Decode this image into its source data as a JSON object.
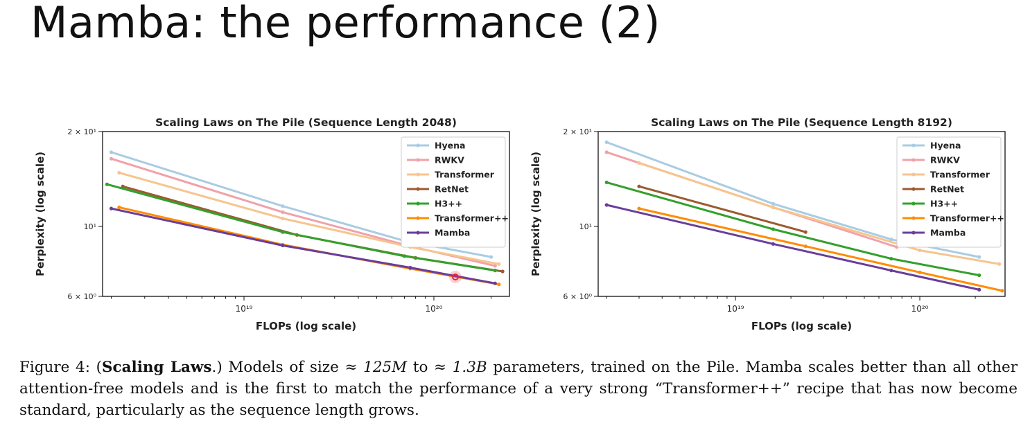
{
  "slide": {
    "title": "Mamba: the performance (2)"
  },
  "caption": {
    "figure_label": "Figure 4: (",
    "bold": "Scaling Laws",
    "text1": ".) Models of size ≈ ",
    "size1": "125M",
    "text2": " to ≈ ",
    "size2": "1.3B",
    "text3": " parameters, trained on the Pile. Mamba scales better than all other attention-free models and is the first to match the performance of a very strong “Transformer++” recipe that has now become standard, particularly as the sequence length grows."
  },
  "chart_data": [
    {
      "type": "line",
      "title": "Scaling Laws on The Pile (Sequence Length 2048)",
      "xlabel": "FLOPs (log scale)",
      "ylabel": "Perplexity (log scale)",
      "xscale": "log",
      "yscale": "log",
      "xlim": [
        1.8e+18,
        2.5e+20
      ],
      "ylim": [
        6,
        20
      ],
      "xticks": [
        {
          "value": 1e+19,
          "label": "10¹⁹"
        },
        {
          "value": 1e+20,
          "label": "10²⁰"
        }
      ],
      "yticks": [
        {
          "value": 20,
          "label": "2 × 10¹"
        },
        {
          "value": 10,
          "label": "10¹"
        },
        {
          "value": 6,
          "label": "6 × 10⁰"
        }
      ],
      "legend": "top-right",
      "grid": false,
      "series": [
        {
          "name": "Hyena",
          "color": "#a9cce3",
          "x": [
            2e+18,
            1.6e+19,
            7e+19,
            2e+20
          ],
          "y": [
            17.2,
            11.6,
            9.0,
            8.0
          ]
        },
        {
          "name": "RWKV",
          "color": "#f1a1a8",
          "x": [
            2e+18,
            1.6e+19,
            7.5e+19,
            2.1e+20
          ],
          "y": [
            16.4,
            11.1,
            8.65,
            7.5
          ]
        },
        {
          "name": "Transformer",
          "color": "#f6c58f",
          "x": [
            2.2e+18,
            1.6e+19,
            7.5e+19,
            2.2e+20
          ],
          "y": [
            14.8,
            10.6,
            8.6,
            7.6
          ]
        },
        {
          "name": "RetNet",
          "color": "#9c5a30",
          "x": [
            2.3e+18,
            1.9e+19,
            8e+19,
            2.3e+20
          ],
          "y": [
            13.4,
            9.4,
            7.95,
            7.2
          ]
        },
        {
          "name": "H3++",
          "color": "#33a02c",
          "x": [
            1.9e+18,
            1.6e+19,
            7e+19,
            2.1e+20
          ],
          "y": [
            13.6,
            9.6,
            8.05,
            7.25
          ]
        },
        {
          "name": "Transformer++",
          "color": "#ff8c00",
          "x": [
            2.2e+18,
            1.6e+19,
            7.5e+19,
            2.2e+20
          ],
          "y": [
            11.5,
            8.75,
            7.35,
            6.55
          ]
        },
        {
          "name": "Mamba",
          "color": "#6a3d9a",
          "x": [
            2e+18,
            1.6e+19,
            7.5e+19,
            2.1e+20
          ],
          "y": [
            11.4,
            8.7,
            7.4,
            6.6
          ]
        }
      ]
    },
    {
      "type": "line",
      "title": "Scaling Laws on The Pile (Sequence Length 8192)",
      "xlabel": "FLOPs (log scale)",
      "ylabel": "Perplexity (log scale)",
      "xscale": "log",
      "yscale": "log",
      "xlim": [
        1.8e+18,
        2.9e+20
      ],
      "ylim": [
        6,
        20
      ],
      "xticks": [
        {
          "value": 1e+19,
          "label": "10¹⁹"
        },
        {
          "value": 1e+20,
          "label": "10²⁰"
        }
      ],
      "yticks": [
        {
          "value": 20,
          "label": "2 × 10¹"
        },
        {
          "value": 10,
          "label": "10¹"
        },
        {
          "value": 6,
          "label": "6 × 10⁰"
        }
      ],
      "legend": "top-right",
      "grid": false,
      "series": [
        {
          "name": "Hyena",
          "color": "#a9cce3",
          "x": [
            2e+18,
            1.6e+19,
            7e+19,
            2.1e+20
          ],
          "y": [
            18.5,
            11.8,
            9.1,
            8.0
          ]
        },
        {
          "name": "RWKV",
          "color": "#f1a1a8",
          "x": [
            2e+18,
            1.6e+19,
            7.5e+19
          ],
          "y": [
            17.2,
            11.5,
            8.6
          ]
        },
        {
          "name": "Transformer",
          "color": "#f6c58f",
          "x": [
            3e+18,
            1.6e+19,
            1e+20,
            2.7e+20
          ],
          "y": [
            15.9,
            11.5,
            8.4,
            7.6
          ]
        },
        {
          "name": "RetNet",
          "color": "#9c5a30",
          "x": [
            3e+18,
            2.4e+19
          ],
          "y": [
            13.4,
            9.6
          ]
        },
        {
          "name": "H3++",
          "color": "#33a02c",
          "x": [
            2e+18,
            1.6e+19,
            7e+19,
            2.1e+20
          ],
          "y": [
            13.8,
            9.8,
            7.9,
            7.0
          ]
        },
        {
          "name": "Transformer++",
          "color": "#ff8c00",
          "x": [
            3e+18,
            2.4e+19,
            1e+20,
            2.8e+20
          ],
          "y": [
            11.4,
            8.65,
            7.15,
            6.25
          ]
        },
        {
          "name": "Mamba",
          "color": "#6a3d9a",
          "x": [
            2e+18,
            1.6e+19,
            7e+19,
            2.1e+20
          ],
          "y": [
            11.7,
            8.8,
            7.25,
            6.3
          ]
        }
      ]
    }
  ]
}
